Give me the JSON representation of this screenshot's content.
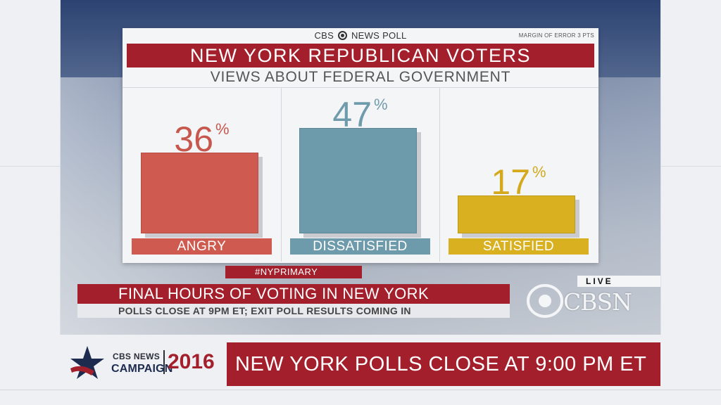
{
  "poll": {
    "brand": "CBS NEWS POLL",
    "brand_left": "CBS",
    "brand_right": "NEWS POLL",
    "margin_of_error": "MARGIN OF ERROR 3 PTS",
    "title": "NEW YORK REPUBLICAN VOTERS",
    "subtitle": "VIEWS ABOUT FEDERAL GOVERNMENT"
  },
  "chart_data": {
    "type": "bar",
    "title": "NEW YORK REPUBLICAN VOTERS",
    "subtitle": "VIEWS ABOUT FEDERAL GOVERNMENT",
    "categories": [
      "ANGRY",
      "DISSATISFIED",
      "SATISFIED"
    ],
    "values": [
      36,
      47,
      17
    ],
    "value_labels": [
      "36",
      "47",
      "17"
    ],
    "unit": "%",
    "ylim": [
      0,
      47
    ],
    "colors": [
      "#cf5b50",
      "#6d9bab",
      "#d9b020"
    ],
    "label_colors": [
      "#c7574d",
      "#6f9cac",
      "#d4a91c"
    ],
    "grid": false
  },
  "lower_third": {
    "hashtag": "#NYPRIMARY",
    "headline": "FINAL HOURS OF VOTING IN NEW YORK",
    "subline": "POLLS CLOSE AT 9PM ET; EXIT POLL RESULTS COMING IN"
  },
  "network": {
    "live_label": "LIVE",
    "logo_text": "CBSN"
  },
  "bottom_bar": {
    "campaign_line1": "CBS NEWS",
    "campaign_line2": "CAMPAIGN",
    "campaign_year": "2016",
    "ticker": "NEW YORK POLLS CLOSE AT 9:00 PM ET"
  },
  "colors": {
    "accent_red": "#a31f2b",
    "navy": "#1d2b4e"
  }
}
